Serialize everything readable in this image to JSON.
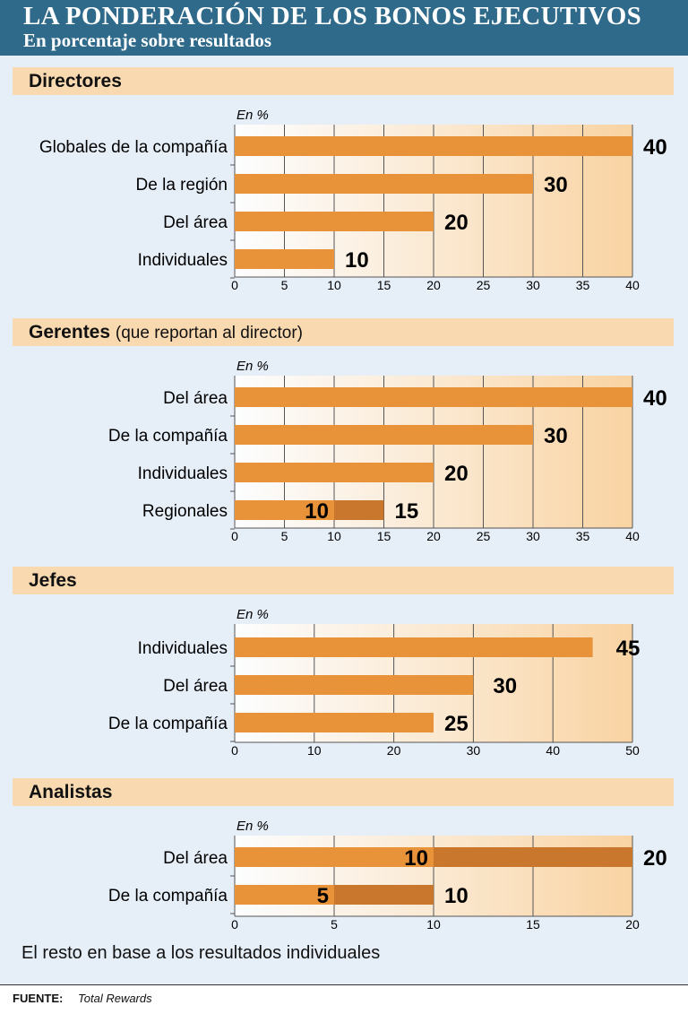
{
  "title": "LA PONDERACIÓN DE LOS BONOS EJECUTIVOS",
  "subtitle": "En porcentaje sobre resultados",
  "colors": {
    "bar": "#e8923a",
    "bar_dark": "#c9772c",
    "band": "#f9d9b0",
    "header": "#2f6a8a",
    "background": "#e6eef8"
  },
  "chart_data": [
    {
      "type": "bar",
      "orientation": "horizontal",
      "title": "Directores",
      "subtitle": "",
      "unit_label": "En %",
      "xlim": [
        0,
        40
      ],
      "xticks": [
        0,
        5,
        10,
        15,
        20,
        25,
        30,
        35,
        40
      ],
      "categories": [
        "Globales de la compañía",
        "De la región",
        "Del área",
        "Individuales"
      ],
      "series": [
        {
          "name": "Ponderación",
          "values": [
            40,
            30,
            20,
            10
          ]
        }
      ]
    },
    {
      "type": "bar",
      "orientation": "horizontal",
      "title": "Gerentes",
      "subtitle": "(que reportan al director)",
      "unit_label": "En %",
      "xlim": [
        0,
        40
      ],
      "xticks": [
        0,
        5,
        10,
        15,
        20,
        25,
        30,
        35,
        40
      ],
      "categories": [
        "Del área",
        "De la compañía",
        "Individuales",
        "Regionales"
      ],
      "series": [
        {
          "name": "Ponderación",
          "values": [
            40,
            30,
            20,
            10
          ]
        },
        {
          "name": "Ponderación máxima",
          "values": [
            null,
            null,
            null,
            15
          ]
        }
      ]
    },
    {
      "type": "bar",
      "orientation": "horizontal",
      "title": "Jefes",
      "subtitle": "",
      "unit_label": "En %",
      "xlim": [
        0,
        50
      ],
      "xticks": [
        0,
        10,
        20,
        30,
        40,
        50
      ],
      "categories": [
        "Individuales",
        "Del área",
        "De la compañía"
      ],
      "series": [
        {
          "name": "Ponderación",
          "values": [
            45,
            30,
            25
          ]
        }
      ]
    },
    {
      "type": "bar",
      "orientation": "horizontal",
      "title": "Analistas",
      "subtitle": "",
      "unit_label": "En %",
      "xlim": [
        0,
        20
      ],
      "xticks": [
        0,
        5,
        10,
        15,
        20
      ],
      "categories": [
        "Del área",
        "De la compañía"
      ],
      "series": [
        {
          "name": "Ponderación",
          "values": [
            10,
            5
          ]
        },
        {
          "name": "Ponderación máxima",
          "values": [
            20,
            10
          ]
        }
      ]
    }
  ],
  "note": "El resto en base a los resultados individuales",
  "source": {
    "label": "FUENTE:",
    "value": "Total Rewards"
  }
}
